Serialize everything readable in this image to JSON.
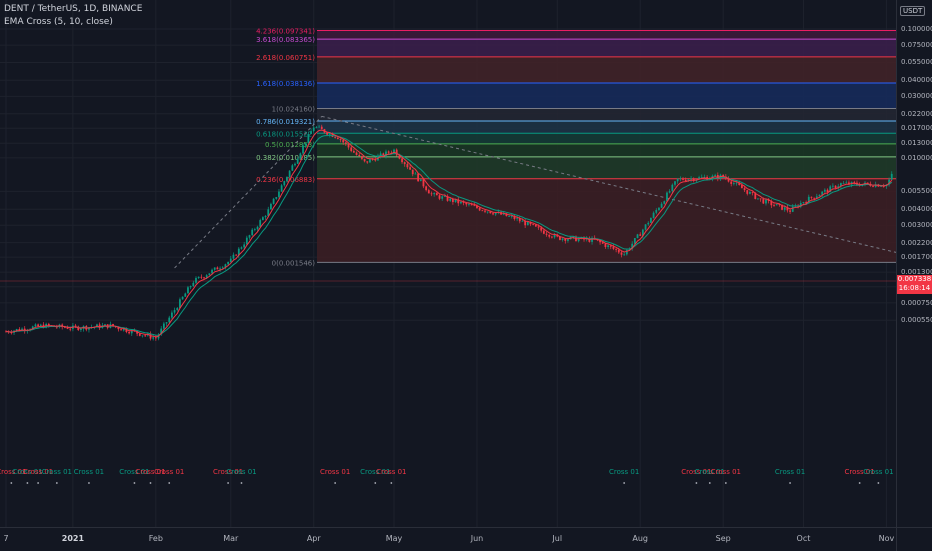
{
  "legend": {
    "symbol": "DENT / TetherUS, 1D, BINANCE",
    "indicator": "EMA Cross (5, 10, close)"
  },
  "currency": "USDT",
  "last_price": {
    "value": "0.007338",
    "countdown": "16:08:14"
  },
  "price_axis": [
    {
      "label": "0.100000",
      "value": 0.1
    },
    {
      "label": "0.075000",
      "value": 0.075
    },
    {
      "label": "0.055000",
      "value": 0.055
    },
    {
      "label": "0.040000",
      "value": 0.04
    },
    {
      "label": "0.030000",
      "value": 0.03
    },
    {
      "label": "0.022000",
      "value": 0.022
    },
    {
      "label": "0.017000",
      "value": 0.017
    },
    {
      "label": "0.013000",
      "value": 0.013
    },
    {
      "label": "0.010000",
      "value": 0.01
    },
    {
      "label": "0.005500",
      "value": 0.0055
    },
    {
      "label": "0.004000",
      "value": 0.004
    },
    {
      "label": "0.003000",
      "value": 0.003
    },
    {
      "label": "0.002200",
      "value": 0.0022
    },
    {
      "label": "0.001700",
      "value": 0.0017
    },
    {
      "label": "0.001300",
      "value": 0.0013
    },
    {
      "label": "0.001000",
      "value": 0.001
    },
    {
      "label": "0.000750",
      "value": 0.00075
    },
    {
      "label": "0.000550",
      "value": 0.00055
    }
  ],
  "time_axis": [
    {
      "label": "7",
      "date": "2020-12-07",
      "bold": false
    },
    {
      "label": "2021",
      "date": "2021-01-01",
      "bold": true
    },
    {
      "label": "Feb",
      "date": "2021-02-01",
      "bold": false
    },
    {
      "label": "Mar",
      "date": "2021-03-01",
      "bold": false
    },
    {
      "label": "Apr",
      "date": "2021-04-01",
      "bold": false
    },
    {
      "label": "May",
      "date": "2021-05-01",
      "bold": false
    },
    {
      "label": "Jun",
      "date": "2021-06-01",
      "bold": false
    },
    {
      "label": "Jul",
      "date": "2021-07-01",
      "bold": false
    },
    {
      "label": "Aug",
      "date": "2021-08-01",
      "bold": false
    },
    {
      "label": "Sep",
      "date": "2021-09-01",
      "bold": false
    },
    {
      "label": "Oct",
      "date": "2021-10-01",
      "bold": false
    },
    {
      "label": "Nov",
      "date": "2021-11-01",
      "bold": false
    }
  ],
  "fib_levels": [
    {
      "label": "4.236(0.097341)",
      "value": 0.097341,
      "color": "#e91e63",
      "fill": "#3c1a3a"
    },
    {
      "label": "3.618(0.083365)",
      "value": 0.083365,
      "color": "#c74bd1",
      "fill": "#3a1e4a"
    },
    {
      "label": "2.618(0.060751)",
      "value": 0.060751,
      "color": "#f23645",
      "fill": "#402228"
    },
    {
      "label": "1.618(0.038136)",
      "value": 0.038136,
      "color": "#2962ff",
      "fill": "#162a5a"
    },
    {
      "label": "1(0.024160)",
      "value": 0.02416,
      "color": "#787b86",
      "fill": "#222632"
    },
    {
      "label": "0.786(0.019321)",
      "value": 0.019321,
      "color": "#64b5f6",
      "fill": "#1d3245"
    },
    {
      "label": "0.618(0.015522)",
      "value": 0.015522,
      "color": "#089981",
      "fill": "#143a35"
    },
    {
      "label": "0.5(0.012853)",
      "value": 0.012853,
      "color": "#4caf50",
      "fill": "#1a3524"
    },
    {
      "label": "0.382(0.010185)",
      "value": 0.010185,
      "color": "#81c784",
      "fill": "#1f3a28"
    },
    {
      "label": "0.236(0.006883)",
      "value": 0.006883,
      "color": "#f23645",
      "fill": "#3b1e24"
    },
    {
      "label": "0(0.001546)",
      "value": 0.001546,
      "color": "#787b86",
      "fill": "none"
    }
  ],
  "cross_labels": [
    {
      "text": "Cross 01",
      "date": "2020-12-09",
      "color": "#f23645"
    },
    {
      "text": "Cross 01",
      "date": "2020-12-15",
      "color": "#089981"
    },
    {
      "text": "Cross 01",
      "date": "2020-12-19",
      "color": "#f23645"
    },
    {
      "text": "Cross 01",
      "date": "2020-12-26",
      "color": "#089981"
    },
    {
      "text": "Cross 01",
      "date": "2021-01-07",
      "color": "#089981"
    },
    {
      "text": "Cross 01",
      "date": "2021-01-24",
      "color": "#089981"
    },
    {
      "text": "Cross 01",
      "date": "2021-01-30",
      "color": "#f23645"
    },
    {
      "text": "Cross 01",
      "date": "2021-02-06",
      "color": "#f23645"
    },
    {
      "text": "Cross 01",
      "date": "2021-02-28",
      "color": "#f23645"
    },
    {
      "text": "Cross 01",
      "date": "2021-03-05",
      "color": "#089981"
    },
    {
      "text": "Cross 01",
      "date": "2021-04-09",
      "color": "#f23645"
    },
    {
      "text": "Cross 01",
      "date": "2021-04-24",
      "color": "#089981"
    },
    {
      "text": "Cross 01",
      "date": "2021-04-30",
      "color": "#f23645"
    },
    {
      "text": "Cross 01",
      "date": "2021-07-26",
      "color": "#089981"
    },
    {
      "text": "Cross 01",
      "date": "2021-08-22",
      "color": "#f23645"
    },
    {
      "text": "Cross 01",
      "date": "2021-08-27",
      "color": "#089981"
    },
    {
      "text": "Cross 01",
      "date": "2021-09-02",
      "color": "#f23645"
    },
    {
      "text": "Cross 01",
      "date": "2021-09-26",
      "color": "#089981"
    },
    {
      "text": "Cross 01",
      "date": "2021-10-22",
      "color": "#f23645"
    },
    {
      "text": "Cross 01",
      "date": "2021-10-29",
      "color": "#089981"
    }
  ],
  "colors": {
    "background": "#131722",
    "up": "#089981",
    "down": "#f23645",
    "ema_fast": "#f23645",
    "ema_slow": "#089981",
    "trendline": "#787b86",
    "last_price": "#f23645"
  },
  "chart_data": {
    "type": "line",
    "log_scale": true,
    "series": [],
    "x": [
      "2020-12-07",
      "2020-12-21",
      "2021-01-01",
      "2021-01-15",
      "2021-02-01",
      "2021-02-15",
      "2021-03-01",
      "2021-03-15",
      "2021-04-01",
      "2021-04-10",
      "2021-04-20",
      "2021-05-01",
      "2021-05-15",
      "2021-06-01",
      "2021-06-15",
      "2021-07-01",
      "2021-07-15",
      "2021-07-26",
      "2021-08-01",
      "2021-08-15",
      "2021-09-01",
      "2021-09-15",
      "2021-09-26",
      "2021-10-01",
      "2021-10-15",
      "2021-11-01",
      "2021-11-03"
    ],
    "close": [
      0.00045,
      0.0005,
      0.00048,
      0.0005,
      0.0004,
      0.0011,
      0.0016,
      0.0039,
      0.0175,
      0.0145,
      0.0092,
      0.0115,
      0.0052,
      0.0041,
      0.0034,
      0.0024,
      0.0023,
      0.0018,
      0.0026,
      0.0068,
      0.0072,
      0.0047,
      0.0039,
      0.0046,
      0.0063,
      0.0062,
      0.0073
    ],
    "ylim": [
      0.0005,
      0.1
    ]
  }
}
